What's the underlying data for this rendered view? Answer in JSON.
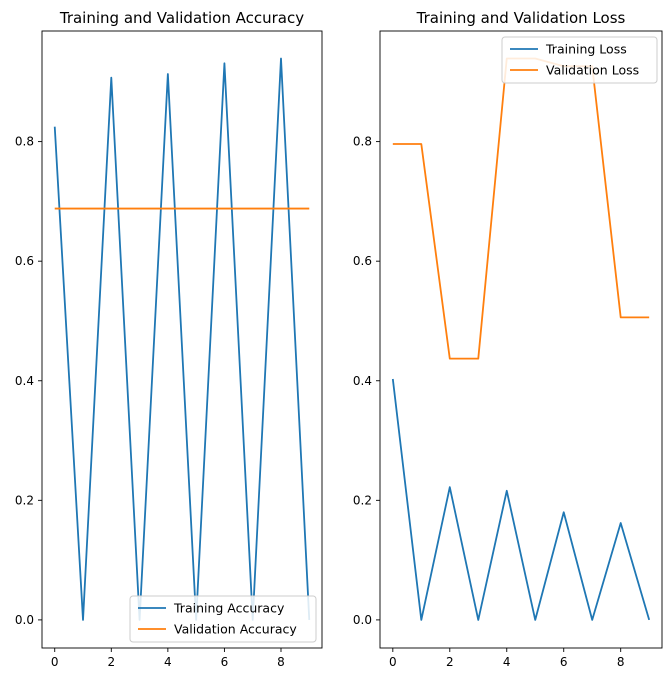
{
  "chart_data": [
    {
      "type": "line",
      "title": "Training and Validation Accuracy",
      "xlabel": "",
      "ylabel": "",
      "xlim": [
        -0.45,
        9.45
      ],
      "ylim": [
        -0.047,
        0.985
      ],
      "xticks": [
        0,
        2,
        4,
        6,
        8
      ],
      "yticks": [
        0.0,
        0.2,
        0.4,
        0.6,
        0.8
      ],
      "ytick_labels": [
        "0.0",
        "0.2",
        "0.4",
        "0.6",
        "0.8"
      ],
      "grid": false,
      "legend_position": "lower right",
      "x": [
        0,
        1,
        2,
        3,
        4,
        5,
        6,
        7,
        8,
        9
      ],
      "series": [
        {
          "name": "Training Accuracy",
          "color": "#1f77b4",
          "values": [
            0.825,
            0.0,
            0.907,
            0.0,
            0.913,
            0.0,
            0.931,
            0.0,
            0.939,
            0.0
          ]
        },
        {
          "name": "Validation Accuracy",
          "color": "#ff7f0e",
          "values": [
            0.688,
            0.688,
            0.688,
            0.688,
            0.688,
            0.688,
            0.688,
            0.688,
            0.688,
            0.688
          ]
        }
      ]
    },
    {
      "type": "line",
      "title": "Training and Validation Loss",
      "xlabel": "",
      "ylabel": "",
      "xlim": [
        -0.45,
        9.45
      ],
      "ylim": [
        -0.047,
        0.985
      ],
      "xticks": [
        0,
        2,
        4,
        6,
        8
      ],
      "yticks": [
        0.0,
        0.2,
        0.4,
        0.6,
        0.8
      ],
      "ytick_labels": [
        "0.0",
        "0.2",
        "0.4",
        "0.6",
        "0.8"
      ],
      "grid": false,
      "legend_position": "upper right",
      "x": [
        0,
        1,
        2,
        3,
        4,
        5,
        6,
        7,
        8,
        9
      ],
      "series": [
        {
          "name": "Training Loss",
          "color": "#1f77b4",
          "values": [
            0.403,
            0.0,
            0.222,
            0.0,
            0.216,
            0.0,
            0.18,
            0.0,
            0.162,
            0.0
          ]
        },
        {
          "name": "Validation Loss",
          "color": "#ff7f0e",
          "values": [
            0.796,
            0.796,
            0.437,
            0.437,
            0.939,
            0.939,
            0.926,
            0.926,
            0.506,
            0.506
          ]
        }
      ]
    }
  ]
}
